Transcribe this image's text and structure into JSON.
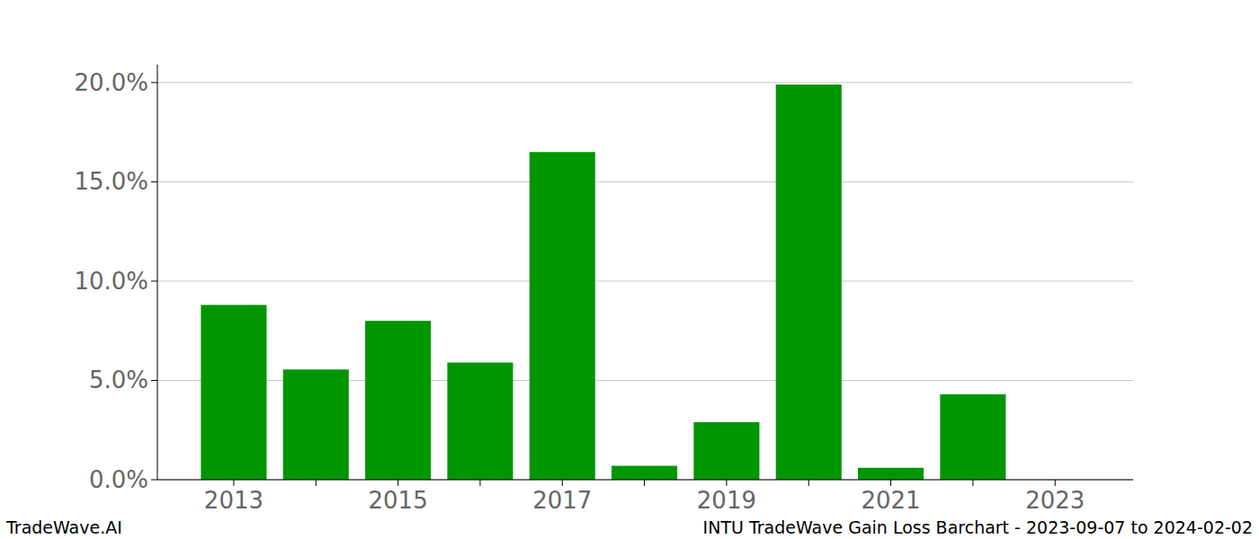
{
  "chart_data": {
    "type": "bar",
    "title": "INTU TradeWave Gain Loss Barchart - 2023-09-07 to 2024-02-02",
    "annotations": [
      "TradeWave.AI"
    ],
    "categories": [
      "2013",
      null,
      "2015",
      null,
      "2017",
      null,
      "2019",
      null,
      "2021",
      null,
      "2023"
    ],
    "values": [
      8.8,
      5.55,
      8.0,
      5.9,
      16.5,
      0.7,
      2.9,
      19.9,
      0.6,
      4.3,
      0
    ],
    "color": "#009600",
    "ylim": [
      0,
      20.9
    ],
    "yticks": [
      {
        "value": 0,
        "label": "0.0%"
      },
      {
        "value": 5,
        "label": "5.0%"
      },
      {
        "value": 10,
        "label": "10.0%"
      },
      {
        "value": 15,
        "label": "15.0%"
      },
      {
        "value": 20,
        "label": "20.0%"
      }
    ],
    "grid": true
  }
}
